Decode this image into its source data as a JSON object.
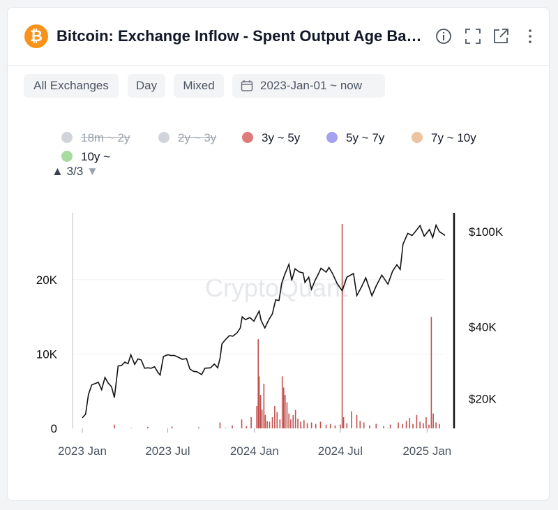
{
  "header": {
    "title": "Bitcoin: Exchange Inflow - Spent Output Age Ban...",
    "coin_icon": "bitcoin-icon",
    "icons": [
      "info-icon",
      "fullscreen-icon",
      "external-link-icon",
      "more-vertical-icon"
    ]
  },
  "filters": {
    "exchange": "All Exchanges",
    "interval": "Day",
    "mode": "Mixed",
    "date_range": "2023-Jan-01 ~ now"
  },
  "legend": [
    {
      "label": "18m ~ 2y",
      "color": "#d1d5db",
      "enabled": false
    },
    {
      "label": "2y ~ 3y",
      "color": "#d1d5db",
      "enabled": false
    },
    {
      "label": "3y ~ 5y",
      "color": "#e07b7b",
      "enabled": true
    },
    {
      "label": "5y ~ 7y",
      "color": "#a5a0ef",
      "enabled": true
    },
    {
      "label": "7y ~ 10y",
      "color": "#eec4a0",
      "enabled": true
    },
    {
      "label": "10y ~",
      "color": "#a8dca0",
      "enabled": true
    }
  ],
  "legend_pager": "3/3",
  "watermark": "CryptoQuant",
  "chart_data": {
    "type": "bar+line",
    "x_range": [
      "2023-01-01",
      "2025-02-08"
    ],
    "x_ticks": [
      "2023 Jan",
      "2023 Jul",
      "2024 Jan",
      "2024 Jul",
      "2025 Jan"
    ],
    "y_left": {
      "ticks": [
        "0",
        "10K",
        "20K"
      ],
      "range": [
        0,
        29000
      ]
    },
    "y_right": {
      "ticks": [
        "$20K",
        "$40K",
        "$100K"
      ],
      "scale": "log",
      "range": [
        15000,
        120000
      ]
    },
    "series": [
      {
        "name": "3y ~ 5y",
        "type": "bar",
        "color": "#c0504d",
        "points": [
          [
            "2023-03-10",
            500
          ],
          [
            "2023-05-20",
            200
          ],
          [
            "2023-07-10",
            250
          ],
          [
            "2023-09-05",
            150
          ],
          [
            "2023-10-20",
            800
          ],
          [
            "2023-11-15",
            400
          ],
          [
            "2023-12-05",
            1200
          ],
          [
            "2023-12-15",
            300
          ],
          [
            "2023-12-25",
            1500
          ],
          [
            "2024-01-06",
            3000
          ],
          [
            "2024-01-09",
            12000
          ],
          [
            "2024-01-11",
            7000
          ],
          [
            "2024-01-14",
            4500
          ],
          [
            "2024-01-17",
            2500
          ],
          [
            "2024-01-21",
            6000
          ],
          [
            "2024-01-24",
            1800
          ],
          [
            "2024-01-28",
            1000
          ],
          [
            "2024-02-02",
            900
          ],
          [
            "2024-02-08",
            1500
          ],
          [
            "2024-02-13",
            3000
          ],
          [
            "2024-02-18",
            2200
          ],
          [
            "2024-02-24",
            1200
          ],
          [
            "2024-02-29",
            7000
          ],
          [
            "2024-03-03",
            5500
          ],
          [
            "2024-03-06",
            4500
          ],
          [
            "2024-03-10",
            3500
          ],
          [
            "2024-03-14",
            2000
          ],
          [
            "2024-03-18",
            1200
          ],
          [
            "2024-03-23",
            1800
          ],
          [
            "2024-03-28",
            2500
          ],
          [
            "2024-04-02",
            1300
          ],
          [
            "2024-04-08",
            900
          ],
          [
            "2024-04-15",
            1100
          ],
          [
            "2024-04-22",
            700
          ],
          [
            "2024-05-01",
            800
          ],
          [
            "2024-05-10",
            600
          ],
          [
            "2024-05-20",
            900
          ],
          [
            "2024-06-01",
            500
          ],
          [
            "2024-06-10",
            600
          ],
          [
            "2024-06-20",
            400
          ],
          [
            "2024-07-01",
            500
          ],
          [
            "2024-07-05",
            27500
          ],
          [
            "2024-07-08",
            1500
          ],
          [
            "2024-07-15",
            700
          ],
          [
            "2024-07-25",
            2300
          ],
          [
            "2024-08-05",
            1800
          ],
          [
            "2024-08-12",
            1000
          ],
          [
            "2024-08-20",
            800
          ],
          [
            "2024-09-01",
            400
          ],
          [
            "2024-09-15",
            600
          ],
          [
            "2024-10-01",
            300
          ],
          [
            "2024-10-15",
            500
          ],
          [
            "2024-11-01",
            800
          ],
          [
            "2024-11-10",
            600
          ],
          [
            "2024-11-18",
            1000
          ],
          [
            "2024-11-25",
            1400
          ],
          [
            "2024-12-02",
            600
          ],
          [
            "2024-12-10",
            1800
          ],
          [
            "2024-12-17",
            900
          ],
          [
            "2024-12-24",
            700
          ],
          [
            "2024-12-30",
            1500
          ],
          [
            "2025-01-05",
            500
          ],
          [
            "2025-01-10",
            15000
          ],
          [
            "2025-01-14",
            2000
          ],
          [
            "2025-01-20",
            800
          ],
          [
            "2025-01-27",
            600
          ]
        ]
      },
      {
        "name": "5y ~ 7y",
        "type": "bar",
        "color": "#a5a0ef",
        "points": [
          [
            "2023-04-15",
            100
          ],
          [
            "2023-11-01",
            120
          ],
          [
            "2024-04-10",
            150
          ],
          [
            "2024-10-10",
            90
          ]
        ]
      },
      {
        "name": "Price",
        "type": "line",
        "axis": "right",
        "color": "#111111",
        "points": [
          [
            "2023-01-01",
            16600
          ],
          [
            "2023-01-08",
            17200
          ],
          [
            "2023-01-14",
            20800
          ],
          [
            "2023-01-21",
            22800
          ],
          [
            "2023-01-28",
            23100
          ],
          [
            "2023-02-04",
            23400
          ],
          [
            "2023-02-11",
            21800
          ],
          [
            "2023-02-18",
            24500
          ],
          [
            "2023-02-25",
            23200
          ],
          [
            "2023-03-04",
            22400
          ],
          [
            "2023-03-10",
            20200
          ],
          [
            "2023-03-18",
            27400
          ],
          [
            "2023-03-25",
            27500
          ],
          [
            "2023-04-01",
            28400
          ],
          [
            "2023-04-08",
            28000
          ],
          [
            "2023-04-14",
            30500
          ],
          [
            "2023-04-22",
            27800
          ],
          [
            "2023-04-29",
            29300
          ],
          [
            "2023-05-06",
            29000
          ],
          [
            "2023-05-13",
            26800
          ],
          [
            "2023-05-20",
            26900
          ],
          [
            "2023-05-27",
            26800
          ],
          [
            "2023-06-03",
            27200
          ],
          [
            "2023-06-10",
            25800
          ],
          [
            "2023-06-15",
            25100
          ],
          [
            "2023-06-22",
            30000
          ],
          [
            "2023-07-01",
            30500
          ],
          [
            "2023-07-08",
            30300
          ],
          [
            "2023-07-15",
            30300
          ],
          [
            "2023-07-22",
            29900
          ],
          [
            "2023-08-01",
            29200
          ],
          [
            "2023-08-10",
            29400
          ],
          [
            "2023-08-17",
            26600
          ],
          [
            "2023-08-25",
            26000
          ],
          [
            "2023-09-01",
            25900
          ],
          [
            "2023-09-11",
            25200
          ],
          [
            "2023-09-18",
            26800
          ],
          [
            "2023-09-30",
            26900
          ],
          [
            "2023-10-08",
            27900
          ],
          [
            "2023-10-15",
            26900
          ],
          [
            "2023-10-20",
            29500
          ],
          [
            "2023-10-24",
            33900
          ],
          [
            "2023-11-01",
            35400
          ],
          [
            "2023-11-09",
            36700
          ],
          [
            "2023-11-16",
            36500
          ],
          [
            "2023-11-25",
            37700
          ],
          [
            "2023-12-02",
            39500
          ],
          [
            "2023-12-06",
            44000
          ],
          [
            "2023-12-13",
            42800
          ],
          [
            "2023-12-22",
            43700
          ],
          [
            "2023-12-31",
            42200
          ],
          [
            "2024-01-05",
            44200
          ],
          [
            "2024-01-11",
            46500
          ],
          [
            "2024-01-15",
            42500
          ],
          [
            "2024-01-23",
            39500
          ],
          [
            "2024-01-31",
            42600
          ],
          [
            "2024-02-08",
            45300
          ],
          [
            "2024-02-15",
            51800
          ],
          [
            "2024-02-22",
            51500
          ],
          [
            "2024-02-28",
            61000
          ],
          [
            "2024-03-05",
            66000
          ],
          [
            "2024-03-14",
            73000
          ],
          [
            "2024-03-20",
            62500
          ],
          [
            "2024-03-27",
            69900
          ],
          [
            "2024-04-05",
            67800
          ],
          [
            "2024-04-13",
            67200
          ],
          [
            "2024-04-17",
            61300
          ],
          [
            "2024-04-25",
            64500
          ],
          [
            "2024-05-01",
            57400
          ],
          [
            "2024-05-08",
            62200
          ],
          [
            "2024-05-15",
            66200
          ],
          [
            "2024-05-21",
            70300
          ],
          [
            "2024-06-01",
            67700
          ],
          [
            "2024-06-07",
            70800
          ],
          [
            "2024-06-15",
            66500
          ],
          [
            "2024-06-24",
            60800
          ],
          [
            "2024-07-05",
            56600
          ],
          [
            "2024-07-15",
            64500
          ],
          [
            "2024-07-29",
            66800
          ],
          [
            "2024-08-05",
            54000
          ],
          [
            "2024-08-15",
            58700
          ],
          [
            "2024-08-24",
            64100
          ],
          [
            "2024-09-06",
            53900
          ],
          [
            "2024-09-15",
            59200
          ],
          [
            "2024-09-27",
            65800
          ],
          [
            "2024-10-10",
            60300
          ],
          [
            "2024-10-20",
            68400
          ],
          [
            "2024-10-29",
            72700
          ],
          [
            "2024-11-05",
            69500
          ],
          [
            "2024-11-11",
            88700
          ],
          [
            "2024-11-21",
            98400
          ],
          [
            "2024-11-30",
            96400
          ],
          [
            "2024-12-05",
            98800
          ],
          [
            "2024-12-17",
            106000
          ],
          [
            "2024-12-26",
            95800
          ],
          [
            "2025-01-06",
            102100
          ],
          [
            "2025-01-13",
            94500
          ],
          [
            "2025-01-20",
            106500
          ],
          [
            "2025-01-27",
            100000
          ],
          [
            "2025-02-03",
            98000
          ],
          [
            "2025-02-08",
            96500
          ]
        ]
      }
    ]
  }
}
